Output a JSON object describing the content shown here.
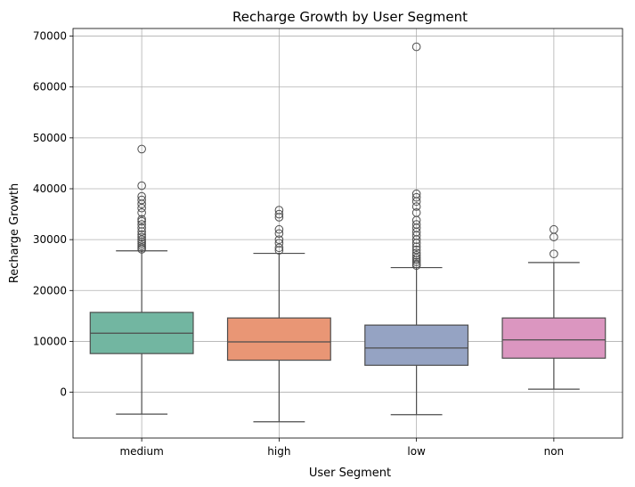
{
  "chart_data": {
    "type": "box",
    "title": "Recharge Growth by User Segment",
    "xlabel": "User Segment",
    "ylabel": "Recharge Growth",
    "ylim": [
      -9000,
      71500
    ],
    "yticks": [
      0,
      10000,
      20000,
      30000,
      40000,
      50000,
      60000,
      70000
    ],
    "grid": true,
    "categories": [
      "medium",
      "high",
      "low",
      "non"
    ],
    "colors": [
      "#72b6a1",
      "#e99675",
      "#95a3c3",
      "#db96c0"
    ],
    "boxes": [
      {
        "category": "medium",
        "whisker_low": -4300,
        "q1": 7600,
        "median": 11600,
        "q3": 15700,
        "whisker_high": 27800,
        "outliers": [
          47800,
          40600,
          38500,
          37800,
          37000,
          36200,
          35300,
          34000,
          33600,
          33000,
          32300,
          31600,
          31000,
          30500,
          30000,
          29600,
          29200,
          28800,
          28400,
          28100
        ]
      },
      {
        "category": "high",
        "whisker_low": -5800,
        "q1": 6300,
        "median": 9900,
        "q3": 14600,
        "whisker_high": 27300,
        "outliers": [
          35800,
          35000,
          34400,
          32000,
          31200,
          30000,
          29300,
          28400,
          27900
        ]
      },
      {
        "category": "low",
        "whisker_low": -4400,
        "q1": 5300,
        "median": 8700,
        "q3": 13200,
        "whisker_high": 24500,
        "outliers": [
          67900,
          39000,
          38300,
          37500,
          36500,
          35300,
          33800,
          33000,
          32300,
          31500,
          30800,
          30000,
          29300,
          28600,
          28000,
          27400,
          26900,
          26400,
          26000,
          25600,
          25200,
          24900
        ]
      },
      {
        "category": "non",
        "whisker_low": 600,
        "q1": 6700,
        "median": 10300,
        "q3": 14600,
        "whisker_high": 25500,
        "outliers": [
          32000,
          30500,
          27200
        ]
      }
    ]
  }
}
